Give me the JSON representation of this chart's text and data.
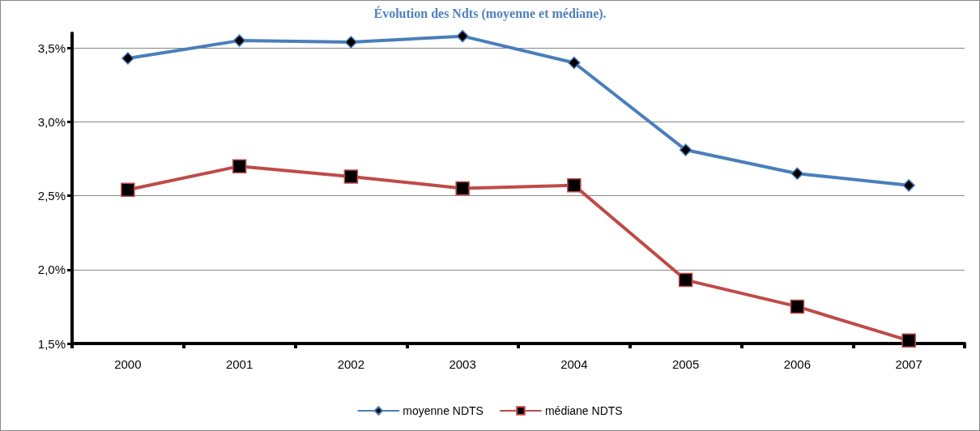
{
  "chart_data": {
    "type": "line",
    "title": "Évolution des Ndts (moyenne et médiane).",
    "categories": [
      "2000",
      "2001",
      "2002",
      "2003",
      "2004",
      "2005",
      "2006",
      "2007"
    ],
    "series": [
      {
        "name": "moyenne NDTS",
        "color": "#4a7ebb",
        "marker": "diamond",
        "values": [
          3.43,
          3.55,
          3.54,
          3.58,
          3.4,
          2.81,
          2.65,
          2.57
        ]
      },
      {
        "name": "médiane NDTS",
        "color": "#be4b48",
        "marker": "square",
        "values": [
          2.54,
          2.7,
          2.63,
          2.55,
          2.57,
          1.93,
          1.75,
          1.52
        ]
      }
    ],
    "ylim": [
      1.5,
      3.6
    ],
    "yticks": [
      {
        "value": 1.5,
        "label": "1,5%"
      },
      {
        "value": 2.0,
        "label": "2,0%"
      },
      {
        "value": 2.5,
        "label": "2,5%"
      },
      {
        "value": 3.0,
        "label": "3,0%"
      },
      {
        "value": 3.5,
        "label": "3,5%"
      }
    ],
    "grid": "y",
    "legend": "bottom",
    "line_style": "solid"
  }
}
